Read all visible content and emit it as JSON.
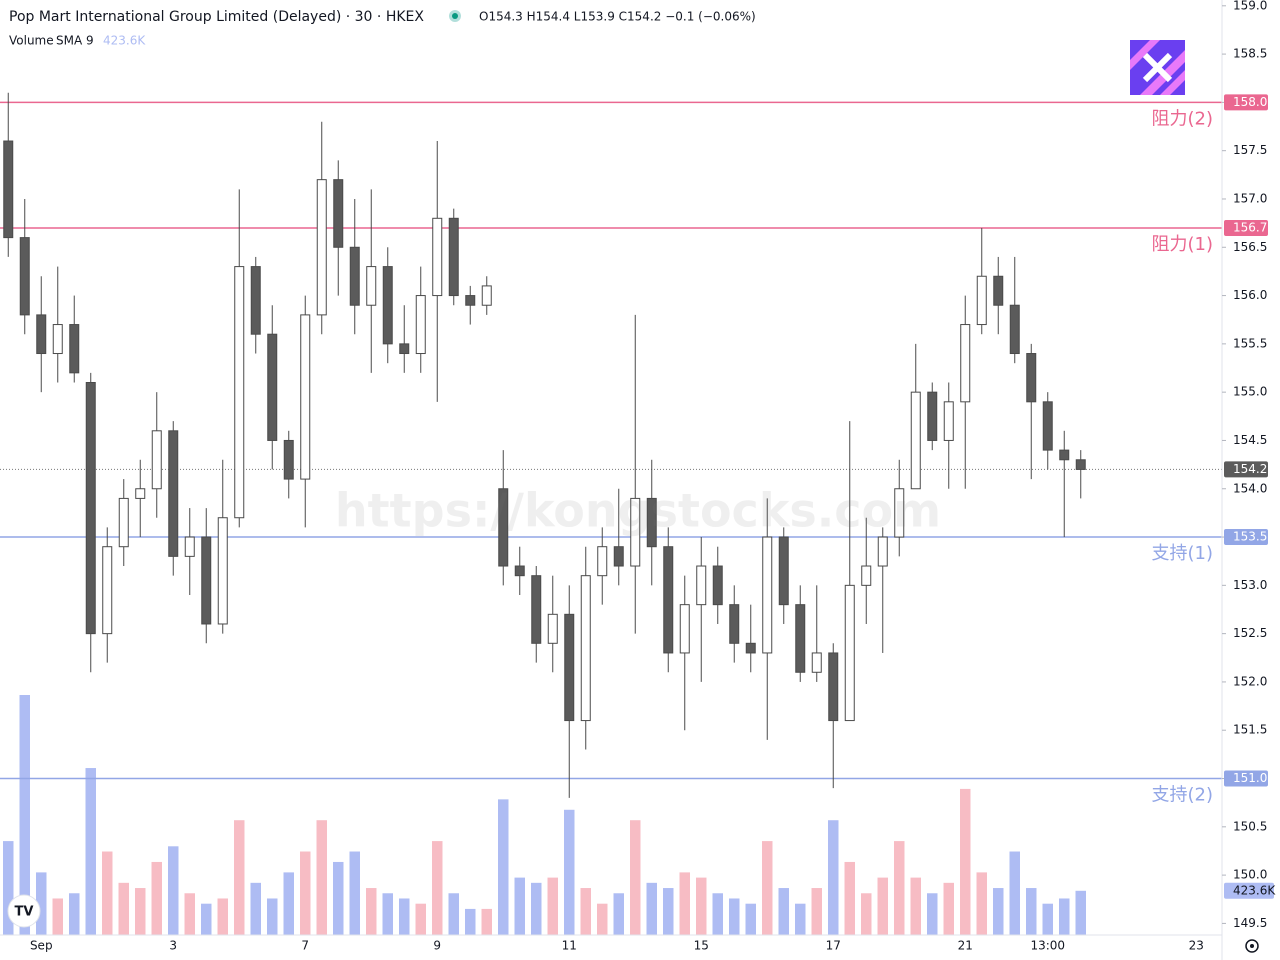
{
  "chart_data": {
    "type": "candlestick",
    "title": "Pop Mart International Group Limited (Delayed) · 30 · HKEX",
    "legend_text": "O154.3 H154.4 L153.9 C154.2 −0.1 (−0.06%)",
    "watermark": "https://kongstocks.com",
    "categories": [
      null,
      null,
      "Sep",
      null,
      null,
      null,
      null,
      null,
      null,
      null,
      "3",
      null,
      null,
      null,
      null,
      null,
      null,
      null,
      "7",
      null,
      null,
      null,
      null,
      null,
      null,
      null,
      "9",
      null,
      null,
      null,
      null,
      null,
      null,
      null,
      "11",
      null,
      null,
      null,
      null,
      null,
      null,
      null,
      "15",
      null,
      null,
      null,
      null,
      null,
      null,
      null,
      "17",
      null,
      null,
      null,
      null,
      null,
      null,
      null,
      "21",
      null,
      null,
      null,
      null,
      "13:00",
      null,
      null,
      null,
      null,
      null,
      null,
      null,
      null,
      "23"
    ],
    "open": [
      157.6,
      156.6,
      155.8,
      155.4,
      155.7,
      155.1,
      152.5,
      153.4,
      153.9,
      154.0,
      154.6,
      153.3,
      153.5,
      152.6,
      153.7,
      156.3,
      155.6,
      154.5,
      154.1,
      155.8,
      157.2,
      156.5,
      155.9,
      156.3,
      155.5,
      155.4,
      156.0,
      156.8,
      156.0,
      155.9,
      154.0,
      153.2,
      153.1,
      152.4,
      152.7,
      151.6,
      153.1,
      153.4,
      153.2,
      153.9,
      153.4,
      152.3,
      152.8,
      153.2,
      152.8,
      152.4,
      152.3,
      153.5,
      152.8,
      152.1,
      152.3,
      151.6,
      153.0,
      153.2,
      153.5,
      154.0,
      155.0,
      154.5,
      154.9,
      155.7,
      156.2,
      155.9,
      155.4,
      154.9,
      154.4,
      154.3,
      null,
      null,
      null,
      null,
      null,
      null,
      null
    ],
    "high": [
      158.1,
      157.0,
      156.2,
      156.3,
      156.0,
      155.2,
      153.6,
      154.1,
      154.3,
      155.0,
      154.7,
      153.8,
      153.8,
      154.3,
      157.1,
      156.4,
      155.9,
      154.6,
      156.0,
      157.8,
      157.4,
      157.0,
      157.1,
      156.5,
      155.9,
      156.3,
      157.6,
      156.9,
      156.1,
      156.2,
      154.4,
      153.4,
      153.2,
      153.1,
      153.0,
      153.4,
      153.6,
      154.0,
      155.8,
      154.3,
      153.6,
      153.1,
      153.5,
      153.4,
      153.0,
      152.8,
      153.9,
      153.6,
      153.0,
      153.0,
      152.4,
      154.7,
      153.7,
      153.6,
      154.3,
      155.5,
      155.1,
      155.1,
      156.0,
      156.7,
      156.4,
      156.4,
      155.5,
      155.0,
      154.6,
      154.4,
      null,
      null,
      null,
      null,
      null,
      null,
      null
    ],
    "low": [
      156.4,
      155.6,
      155.0,
      155.1,
      155.1,
      152.1,
      152.2,
      153.2,
      153.5,
      153.7,
      153.1,
      152.9,
      152.4,
      152.5,
      153.6,
      155.4,
      154.2,
      153.9,
      153.6,
      155.6,
      156.0,
      155.6,
      155.2,
      155.3,
      155.2,
      155.2,
      154.9,
      155.9,
      155.7,
      155.8,
      153.0,
      152.9,
      152.2,
      152.1,
      150.8,
      151.3,
      152.8,
      153.0,
      152.5,
      153.0,
      152.1,
      151.5,
      152.0,
      152.6,
      152.2,
      152.1,
      151.4,
      152.6,
      152.0,
      152.0,
      150.9,
      151.6,
      152.6,
      152.3,
      153.3,
      154.0,
      154.4,
      154.0,
      154.0,
      155.6,
      155.6,
      155.3,
      154.1,
      154.2,
      153.5,
      153.9,
      null,
      null,
      null,
      null,
      null,
      null,
      null
    ],
    "close": [
      156.6,
      155.8,
      155.4,
      155.7,
      155.2,
      152.5,
      153.4,
      153.9,
      154.0,
      154.6,
      153.3,
      153.5,
      152.6,
      153.7,
      156.3,
      155.6,
      154.5,
      154.1,
      155.8,
      157.2,
      156.5,
      155.9,
      156.3,
      155.5,
      155.4,
      156.0,
      156.8,
      156.0,
      155.9,
      156.1,
      153.2,
      153.1,
      152.4,
      152.7,
      151.6,
      153.1,
      153.4,
      153.2,
      153.9,
      153.4,
      152.3,
      152.8,
      153.2,
      152.8,
      152.4,
      152.3,
      153.5,
      152.8,
      152.1,
      152.3,
      151.6,
      153.0,
      153.2,
      153.5,
      154.0,
      155.0,
      154.5,
      154.9,
      155.7,
      156.2,
      155.9,
      155.4,
      154.9,
      154.4,
      154.3,
      154.2,
      null,
      null,
      null,
      null,
      null,
      null,
      null
    ],
    "up_color": "#ffffff",
    "down_color": "#5b5b5b",
    "wick_color": "#4a4a4a",
    "volume": {
      "name": "Volume",
      "sma": "SMA 9",
      "last_label": "423.6K",
      "up_color": "#f7bcc4",
      "down_color": "#aebcf3",
      "values": [
        900,
        2300,
        600,
        350,
        400,
        1600,
        800,
        500,
        450,
        700,
        850,
        400,
        300,
        350,
        1100,
        500,
        350,
        600,
        800,
        1100,
        700,
        800,
        450,
        400,
        350,
        300,
        900,
        400,
        250,
        250,
        1300,
        550,
        500,
        550,
        1200,
        450,
        300,
        400,
        1100,
        500,
        450,
        600,
        550,
        400,
        350,
        300,
        900,
        450,
        300,
        450,
        1100,
        700,
        400,
        550,
        900,
        550,
        400,
        500,
        1400,
        600,
        450,
        800,
        450,
        300,
        350,
        423.6,
        null,
        null,
        null,
        null,
        null,
        null,
        null
      ]
    },
    "levels": [
      {
        "value": 158.0,
        "label": "158.0",
        "name": "阻力(2)",
        "color": "#ea6790"
      },
      {
        "value": 156.7,
        "label": "156.7",
        "name": "阻力(1)",
        "color": "#ea6790"
      },
      {
        "value": 153.5,
        "label": "153.5",
        "name": "支持(1)",
        "color": "#92a6e6"
      },
      {
        "value": 151.0,
        "label": "151.0",
        "name": "支持(2)",
        "color": "#92a6e6"
      }
    ],
    "ylim": [
      149.38,
      159.06
    ],
    "yticks": [
      149.5,
      {
        "value": 150,
        "label": "150.0"
      },
      150.5,
      {
        "value": 151,
        "label": "151.0"
      },
      151.5,
      {
        "value": 152,
        "label": "152.0"
      },
      152.5,
      {
        "value": 153,
        "label": "153.0"
      },
      153.5,
      {
        "value": 154,
        "label": "154.0"
      },
      154.5,
      {
        "value": 155,
        "label": "155.0"
      },
      155.5,
      {
        "value": 156,
        "label": "156.0"
      },
      156.5,
      {
        "value": 157,
        "label": "157.0"
      },
      157.5,
      {
        "value": 158,
        "label": "158.0"
      },
      158.5,
      {
        "value": 159,
        "label": "159.0"
      }
    ]
  }
}
